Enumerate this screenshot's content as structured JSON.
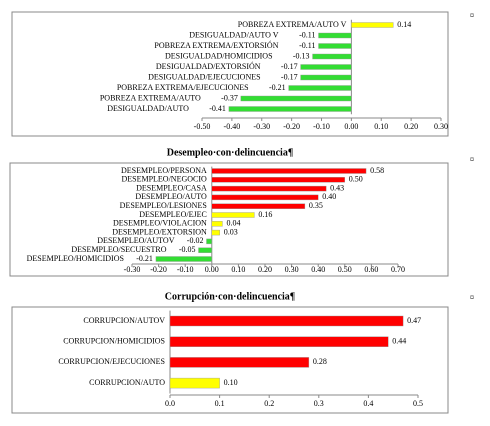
{
  "chart_data": [
    {
      "type": "bar",
      "orientation": "horizontal",
      "categories": [
        "POBREZA EXTREMA/AUTO V",
        "DESIGUALDAD/AUTO V",
        "POBREZA EXTREMA/EXTORSIÓN",
        "DESIGUALDAD/HOMICIDIOS",
        "DESIGUALDAD/EXTORSIÓN",
        "DESIGUALDAD/EJECUCIONES",
        "POBREZA EXTREMA/EJECUCIONES",
        "POBREZA EXTREMA/AUTO",
        "DESIGUALDAD/AUTO"
      ],
      "values": [
        0.14,
        -0.11,
        -0.11,
        -0.13,
        -0.17,
        -0.17,
        -0.21,
        -0.37,
        -0.41
      ],
      "colors": [
        "#ffff00",
        "#33dd33",
        "#33dd33",
        "#33dd33",
        "#33dd33",
        "#33dd33",
        "#33dd33",
        "#33dd33",
        "#33dd33"
      ],
      "xlim": [
        -0.5,
        0.3
      ],
      "xticks": [
        {
          "value": -0.5,
          "label": "-0.50"
        },
        {
          "value": -0.4,
          "label": "-0.40"
        },
        {
          "value": -0.3,
          "label": "-0.30"
        },
        {
          "value": -0.2,
          "label": "-0.20"
        },
        {
          "value": -0.1,
          "label": "-0.10"
        },
        {
          "value": 0,
          "label": "0.00"
        },
        {
          "value": 0.1,
          "label": "0.10"
        },
        {
          "value": 0.2,
          "label": "0.20"
        },
        {
          "value": 0.3,
          "label": "0.30"
        }
      ]
    },
    {
      "type": "bar",
      "orientation": "horizontal",
      "title": "Desempleo·con·delincuencia¶",
      "categories": [
        "DESEMPLEO/PERSONA",
        "DESEMPLEO/NEGOCIO",
        "DESEMPLEO/CASA",
        "DESEMPLEO/AUTO",
        "DESEMPLEO/LESIONES",
        "DESEMPLEO/EJEC",
        "DESEMPLEO/VIOLACION",
        "DESEMPLEO/EXTORSION",
        "DESEMPLEO/AUTOV",
        "DESEMPLEO/SECUESTRO",
        "DESEMPLEO/HOMICIDIOS"
      ],
      "values": [
        0.58,
        0.5,
        0.43,
        0.4,
        0.35,
        0.16,
        0.04,
        0.03,
        -0.02,
        -0.05,
        -0.21
      ],
      "value_labels": [
        "0.58",
        "0.50",
        "0.43",
        "0.40",
        "0.35",
        "0.16",
        "0.04",
        "0.03",
        "-0.02",
        "-0.05",
        "-0.21"
      ],
      "colors": [
        "#ff0000",
        "#ff0000",
        "#ff0000",
        "#ff0000",
        "#ff0000",
        "#ffff00",
        "#ffff00",
        "#ffff00",
        "#33dd33",
        "#33dd33",
        "#33dd33"
      ],
      "xlim": [
        -0.3,
        0.7
      ],
      "xticks": [
        {
          "value": -0.3,
          "label": "-0.30"
        },
        {
          "value": -0.2,
          "label": "-0.20"
        },
        {
          "value": -0.1,
          "label": "-0.10"
        },
        {
          "value": 0,
          "label": "0.00"
        },
        {
          "value": 0.1,
          "label": "0.10"
        },
        {
          "value": 0.2,
          "label": "0.20"
        },
        {
          "value": 0.3,
          "label": "0.30"
        },
        {
          "value": 0.4,
          "label": "0.40"
        },
        {
          "value": 0.5,
          "label": "0.50"
        },
        {
          "value": 0.6,
          "label": "0.60"
        },
        {
          "value": 0.7,
          "label": "0.70"
        }
      ]
    },
    {
      "type": "bar",
      "orientation": "horizontal",
      "title": "Corrupción·con·delincuencia¶",
      "categories": [
        "CORRUPCION/AUTOV",
        "CORRUPCION/HOMICIDIOS",
        "CORRUPCION/EJECUCIONES",
        "CORRUPCION/AUTO"
      ],
      "values": [
        0.47,
        0.44,
        0.28,
        0.1
      ],
      "value_labels": [
        "0.47",
        "0.44",
        "0.28",
        "0.10"
      ],
      "colors": [
        "#ff0000",
        "#ff0000",
        "#ff0000",
        "#ffff00"
      ],
      "xlim": [
        0,
        0.5
      ],
      "xticks": [
        {
          "value": 0,
          "label": "0.0"
        },
        {
          "value": 0.1,
          "label": "0.1"
        },
        {
          "value": 0.2,
          "label": "0.2"
        },
        {
          "value": 0.3,
          "label": "0.3"
        },
        {
          "value": 0.4,
          "label": "0.4"
        },
        {
          "value": 0.5,
          "label": "0.5"
        }
      ]
    }
  ],
  "cell_marks": [
    "¤",
    "¤",
    "¤"
  ]
}
